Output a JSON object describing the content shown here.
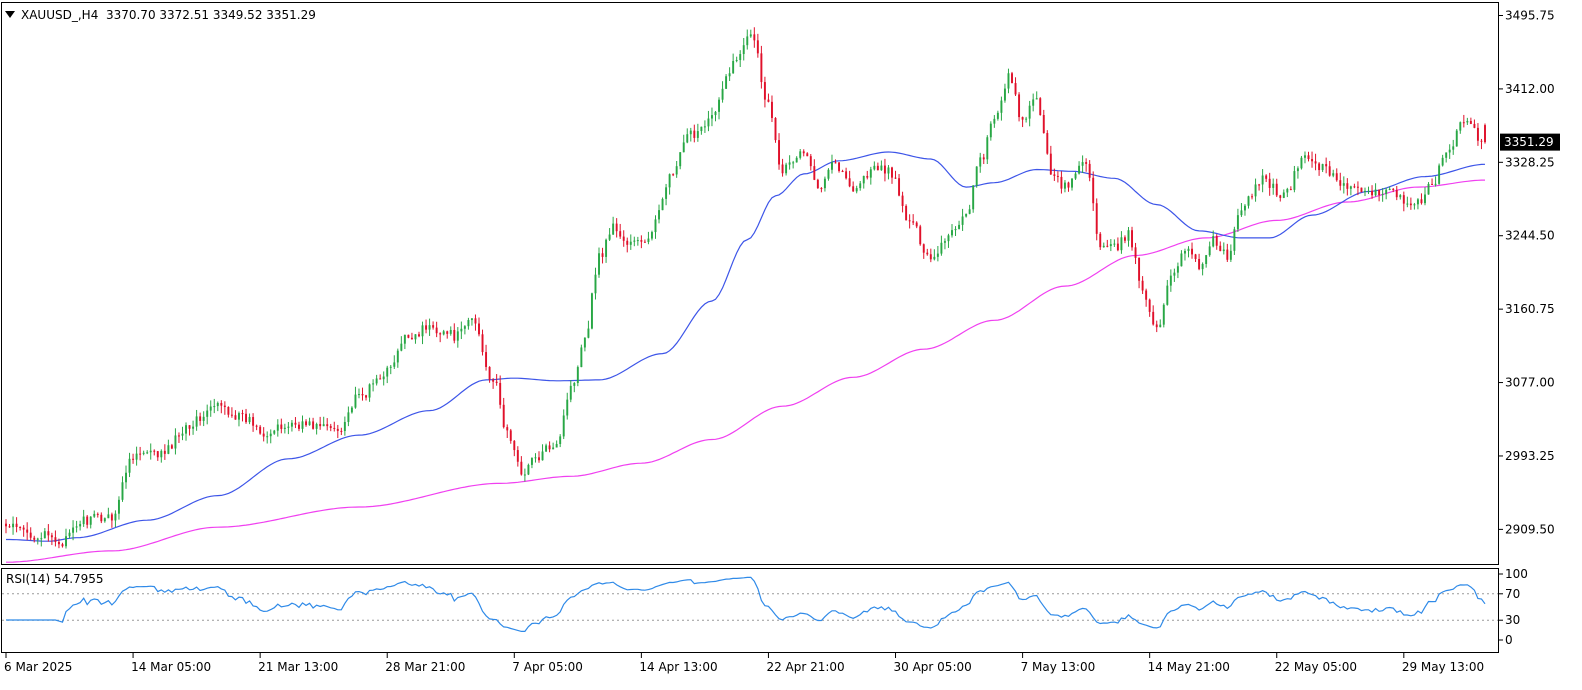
{
  "header": {
    "symbol_line": "XAUUSD_,H4  3370.70 3372.51 3349.52 3351.29",
    "menu_icon": "triangle-down-icon"
  },
  "rsi_label": "RSI(14) 54.7955",
  "colors": {
    "bull": "#28a745",
    "bear": "#e0102a",
    "ma_fast": "#3d55e8",
    "ma_slow": "#f040f0",
    "rsi": "#2f8ae8",
    "last_price_bg": "#000000"
  },
  "chart_data": [
    {
      "type": "candlestick",
      "symbol": "XAUUSD_",
      "timeframe": "H4",
      "last_ohlc": {
        "open": 3370.7,
        "high": 3372.51,
        "low": 3349.52,
        "close": 3351.29
      },
      "last_price_label": "3351.29",
      "ylim": [
        2870,
        3510
      ],
      "y_ticks": [
        "3495.75",
        "3412.00",
        "3328.25",
        "3244.50",
        "3160.75",
        "3077.00",
        "2993.25",
        "2909.50"
      ],
      "y_tick_values": [
        3495.75,
        3412.0,
        3328.25,
        3244.5,
        3160.75,
        3077.0,
        2993.25,
        2909.5
      ],
      "x_ticks": [
        "6 Mar 2025",
        "14 Mar 05:00",
        "21 Mar 13:00",
        "28 Mar 21:00",
        "7 Apr 05:00",
        "14 Apr 13:00",
        "22 Apr 21:00",
        "30 Apr 05:00",
        "7 May 13:00",
        "14 May 21:00",
        "22 May 05:00",
        "29 May 13:00"
      ],
      "x_tick_bar_index": [
        0,
        36,
        72,
        108,
        144,
        180,
        216,
        252,
        288,
        324,
        360,
        396
      ],
      "bar_count": 420,
      "close_anchors": [
        [
          0,
          2912
        ],
        [
          10,
          2902
        ],
        [
          16,
          2895
        ],
        [
          22,
          2920
        ],
        [
          30,
          2925
        ],
        [
          36,
          2995
        ],
        [
          44,
          2995
        ],
        [
          52,
          3030
        ],
        [
          60,
          3050
        ],
        [
          68,
          3035
        ],
        [
          74,
          3020
        ],
        [
          82,
          3030
        ],
        [
          94,
          3025
        ],
        [
          100,
          3060
        ],
        [
          108,
          3090
        ],
        [
          114,
          3130
        ],
        [
          120,
          3140
        ],
        [
          128,
          3130
        ],
        [
          132,
          3150
        ],
        [
          138,
          3080
        ],
        [
          142,
          3020
        ],
        [
          146,
          2975
        ],
        [
          150,
          2990
        ],
        [
          156,
          3010
        ],
        [
          160,
          3070
        ],
        [
          164,
          3130
        ],
        [
          168,
          3220
        ],
        [
          172,
          3255
        ],
        [
          176,
          3235
        ],
        [
          182,
          3240
        ],
        [
          188,
          3310
        ],
        [
          194,
          3360
        ],
        [
          200,
          3380
        ],
        [
          206,
          3440
        ],
        [
          211,
          3480
        ],
        [
          216,
          3395
        ],
        [
          220,
          3320
        ],
        [
          226,
          3340
        ],
        [
          230,
          3300
        ],
        [
          234,
          3330
        ],
        [
          240,
          3300
        ],
        [
          246,
          3320
        ],
        [
          250,
          3320
        ],
        [
          256,
          3260
        ],
        [
          262,
          3220
        ],
        [
          268,
          3250
        ],
        [
          272,
          3270
        ],
        [
          276,
          3330
        ],
        [
          280,
          3375
        ],
        [
          284,
          3425
        ],
        [
          288,
          3375
        ],
        [
          292,
          3400
        ],
        [
          296,
          3320
        ],
        [
          300,
          3300
        ],
        [
          306,
          3330
        ],
        [
          310,
          3230
        ],
        [
          314,
          3230
        ],
        [
          318,
          3245
        ],
        [
          322,
          3185
        ],
        [
          326,
          3135
        ],
        [
          330,
          3200
        ],
        [
          334,
          3230
        ],
        [
          338,
          3210
        ],
        [
          342,
          3240
        ],
        [
          346,
          3220
        ],
        [
          350,
          3275
        ],
        [
          356,
          3310
        ],
        [
          362,
          3290
        ],
        [
          368,
          3335
        ],
        [
          374,
          3320
        ],
        [
          380,
          3300
        ],
        [
          386,
          3290
        ],
        [
          392,
          3300
        ],
        [
          398,
          3275
        ],
        [
          404,
          3300
        ],
        [
          408,
          3340
        ],
        [
          413,
          3375
        ],
        [
          419,
          3351.29
        ]
      ],
      "series": [
        {
          "name": "MA",
          "kind": "moving-average",
          "anchors": [
            [
              0,
              2898
            ],
            [
              12,
              2896
            ],
            [
              20,
              2900
            ],
            [
              40,
              2920
            ],
            [
              60,
              2948
            ],
            [
              80,
              2990
            ],
            [
              100,
              3017
            ],
            [
              120,
              3045
            ],
            [
              136,
              3080
            ],
            [
              144,
              3082
            ],
            [
              156,
              3079
            ],
            [
              168,
              3080
            ],
            [
              186,
              3110
            ],
            [
              200,
              3170
            ],
            [
              210,
              3240
            ],
            [
              218,
              3290
            ],
            [
              226,
              3315
            ],
            [
              236,
              3330
            ],
            [
              250,
              3340
            ],
            [
              262,
              3332
            ],
            [
              272,
              3300
            ],
            [
              280,
              3305
            ],
            [
              292,
              3320
            ],
            [
              302,
              3318
            ],
            [
              314,
              3310
            ],
            [
              326,
              3280
            ],
            [
              338,
              3250
            ],
            [
              350,
              3242
            ],
            [
              358,
              3242
            ],
            [
              370,
              3268
            ],
            [
              386,
              3295
            ],
            [
              402,
              3312
            ],
            [
              419,
              3326
            ]
          ]
        },
        {
          "name": "MA",
          "kind": "moving-average",
          "anchors": [
            [
              0,
              2872
            ],
            [
              30,
              2885
            ],
            [
              60,
              2912
            ],
            [
              100,
              2935
            ],
            [
              140,
              2962
            ],
            [
              160,
              2970
            ],
            [
              180,
              2985
            ],
            [
              200,
              3012
            ],
            [
              220,
              3050
            ],
            [
              240,
              3083
            ],
            [
              260,
              3115
            ],
            [
              280,
              3148
            ],
            [
              300,
              3187
            ],
            [
              320,
              3222
            ],
            [
              340,
              3242
            ],
            [
              360,
              3262
            ],
            [
              380,
              3283
            ],
            [
              400,
              3300
            ],
            [
              419,
              3308
            ]
          ]
        }
      ]
    },
    {
      "type": "line",
      "name": "RSI(14)",
      "period": 14,
      "last_value": 54.7955,
      "ylim": [
        0,
        100
      ],
      "y_ticks": [
        "100",
        "70",
        "30",
        "0"
      ],
      "y_tick_values": [
        100,
        70,
        30,
        0
      ],
      "levels": [
        70,
        30
      ]
    }
  ]
}
